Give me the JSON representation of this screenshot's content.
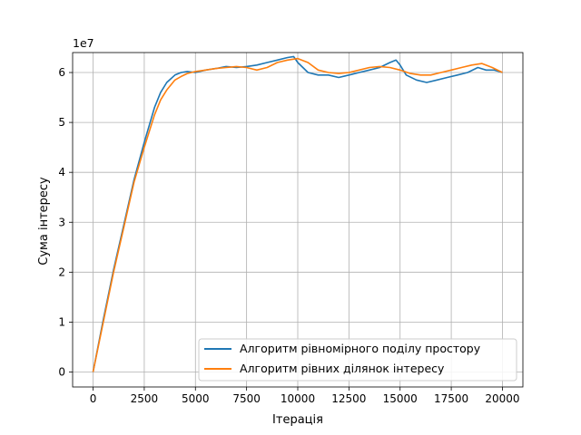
{
  "chart_data": {
    "type": "line",
    "xlabel": "Ітерація",
    "ylabel": "Сума інтересу",
    "y_offset_label": "1e7",
    "xlim": [
      -1000,
      21000
    ],
    "ylim": [
      -0.3,
      6.4
    ],
    "xticks": [
      0,
      2500,
      5000,
      7500,
      10000,
      12500,
      15000,
      17500,
      20000
    ],
    "yticks": [
      0,
      1,
      2,
      3,
      4,
      5,
      6
    ],
    "grid": true,
    "legend_position": "lower-right",
    "series": [
      {
        "name": "Алгоритм рівномірного поділу простору",
        "color": "#1f77b4",
        "x": [
          0,
          500,
          1000,
          1500,
          2000,
          2500,
          3000,
          3300,
          3600,
          4000,
          4300,
          4600,
          5000,
          5500,
          6000,
          6500,
          7000,
          7500,
          8000,
          8500,
          9000,
          9500,
          9800,
          10000,
          10500,
          11000,
          11500,
          12000,
          12500,
          13000,
          13500,
          14000,
          14500,
          14800,
          15000,
          15300,
          15800,
          16300,
          16800,
          17300,
          17800,
          18300,
          18800,
          19200,
          19600,
          20000
        ],
        "values": [
          0,
          1.05,
          2.05,
          2.95,
          3.85,
          4.6,
          5.3,
          5.6,
          5.8,
          5.95,
          6.0,
          6.02,
          6.0,
          6.05,
          6.08,
          6.12,
          6.1,
          6.12,
          6.15,
          6.2,
          6.25,
          6.3,
          6.32,
          6.2,
          6.0,
          5.95,
          5.95,
          5.9,
          5.95,
          6.0,
          6.05,
          6.1,
          6.2,
          6.25,
          6.15,
          5.95,
          5.85,
          5.8,
          5.85,
          5.9,
          5.95,
          6.0,
          6.1,
          6.05,
          6.05,
          6.0
        ]
      },
      {
        "name": "Алгоритм рівних ділянок інтересу",
        "color": "#ff7f0e",
        "x": [
          0,
          500,
          1000,
          1500,
          2000,
          2500,
          3000,
          3300,
          3600,
          4000,
          4300,
          4600,
          5000,
          5500,
          6000,
          6500,
          7000,
          7500,
          8000,
          8500,
          9000,
          9500,
          10000,
          10500,
          11000,
          11500,
          12000,
          12500,
          13000,
          13500,
          14000,
          14500,
          15000,
          15500,
          16000,
          16500,
          17000,
          17500,
          18000,
          18500,
          19000,
          19500,
          20000
        ],
        "values": [
          0,
          1.0,
          2.0,
          2.9,
          3.8,
          4.5,
          5.15,
          5.45,
          5.65,
          5.85,
          5.92,
          5.98,
          6.02,
          6.05,
          6.08,
          6.1,
          6.12,
          6.1,
          6.05,
          6.1,
          6.2,
          6.25,
          6.28,
          6.2,
          6.05,
          6.0,
          5.98,
          6.0,
          6.05,
          6.1,
          6.12,
          6.1,
          6.05,
          5.98,
          5.95,
          5.95,
          6.0,
          6.05,
          6.1,
          6.15,
          6.18,
          6.1,
          6.0
        ]
      }
    ]
  }
}
